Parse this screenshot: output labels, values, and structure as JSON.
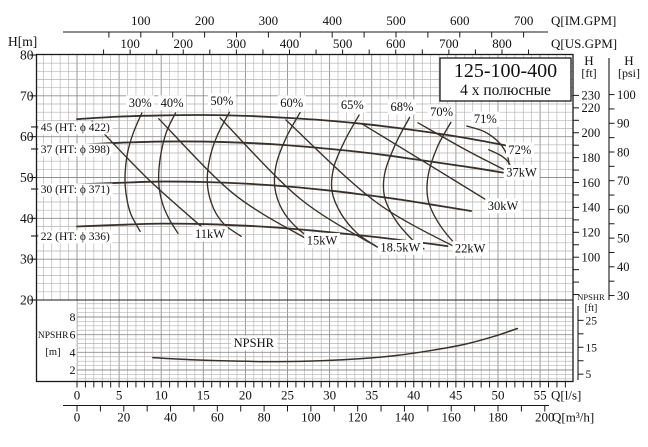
{
  "chart_data": {
    "type": "line",
    "title": "125-100-400",
    "subtitle": "4 х полюсные",
    "axes": {
      "flow_imgpm": {
        "label": "Q[IM.GPM]",
        "ticks": [
          100,
          200,
          300,
          400,
          500,
          600,
          700
        ],
        "minor_step": 50,
        "lps_per_unit": 0.07577
      },
      "flow_usgpm": {
        "label": "Q[US.GPM]",
        "ticks": [
          100,
          200,
          300,
          400,
          500,
          600,
          700,
          800
        ],
        "minor_step": 50,
        "lps_per_unit": 0.06309
      },
      "head_m": {
        "label": "H[m]",
        "ticks": [
          80,
          70,
          60,
          50,
          40,
          30,
          20
        ]
      },
      "head_ft": {
        "label": "H",
        "unit": "[ft]",
        "ticks": [
          230,
          220,
          200,
          180,
          160,
          140,
          120,
          100
        ],
        "minor_step": 10,
        "m_per_unit": 0.3048
      },
      "head_psi": {
        "label": "H",
        "unit": "[psi]",
        "ticks": [
          100,
          90,
          80,
          70,
          60,
          50,
          40,
          30
        ],
        "minor_step": 5,
        "m_per_unit": 0.7031
      },
      "flow_lps": {
        "label": "Q[l/s]",
        "ticks": [
          0,
          5,
          10,
          15,
          20,
          25,
          30,
          35,
          40,
          45,
          50,
          55
        ],
        "minor_step": 1
      },
      "flow_m3h": {
        "label": "Q[m³/h]",
        "ticks": [
          0,
          20,
          40,
          60,
          80,
          100,
          120,
          140,
          160,
          180,
          200
        ],
        "minor_step": 10,
        "lps_per_unit": 0.27778
      },
      "npshr_m": {
        "label": "NPSHR",
        "unit": "[m]",
        "ticks": [
          8,
          6,
          4,
          2
        ]
      },
      "npshr_ft": {
        "label": "NPSHR",
        "unit": "[ft]",
        "ticks": [
          25,
          15,
          5
        ],
        "minor_step": 5,
        "m_per_unit": 0.3048
      }
    },
    "head_curves": [
      {
        "name": "45 (HT: ϕ 422)",
        "label_at": [
          -4.3,
          61.4
        ],
        "points": [
          [
            0,
            64.3
          ],
          [
            5,
            64.9
          ],
          [
            10,
            65.2
          ],
          [
            15,
            65.3
          ],
          [
            20,
            65.1
          ],
          [
            25,
            64.6
          ],
          [
            30,
            63.9
          ],
          [
            35,
            62.9
          ],
          [
            40,
            61.6
          ],
          [
            44,
            60.4
          ],
          [
            48,
            59.0
          ],
          [
            52.3,
            57.3
          ]
        ]
      },
      {
        "name": "37 (HT: ϕ 398)",
        "label_at": [
          -4.3,
          56.0
        ],
        "points": [
          [
            0,
            58.0
          ],
          [
            5,
            58.5
          ],
          [
            10,
            58.8
          ],
          [
            15,
            58.8
          ],
          [
            20,
            58.5
          ],
          [
            25,
            57.9
          ],
          [
            30,
            57.0
          ],
          [
            35,
            55.9
          ],
          [
            40,
            54.5
          ],
          [
            44,
            53.3
          ],
          [
            47,
            52.4
          ],
          [
            50.6,
            51.2
          ]
        ]
      },
      {
        "name": "30 (HT: ϕ 371)",
        "label_at": [
          -4.3,
          46.2
        ],
        "points": [
          [
            0,
            48.3
          ],
          [
            5,
            48.7
          ],
          [
            10,
            49.0
          ],
          [
            15,
            48.9
          ],
          [
            20,
            48.5
          ],
          [
            25,
            47.8
          ],
          [
            30,
            46.8
          ],
          [
            34,
            45.8
          ],
          [
            38,
            44.7
          ],
          [
            42,
            43.4
          ],
          [
            46.8,
            41.8
          ]
        ]
      },
      {
        "name": "22 (HT: ϕ 336)",
        "label_at": [
          -4.3,
          34.7
        ],
        "points": [
          [
            0,
            38.0
          ],
          [
            5,
            38.4
          ],
          [
            10,
            38.7
          ],
          [
            15,
            38.6
          ],
          [
            20,
            38.2
          ],
          [
            24,
            37.7
          ],
          [
            28,
            37.0
          ],
          [
            32,
            36.2
          ],
          [
            36,
            35.3
          ],
          [
            40,
            34.3
          ],
          [
            44,
            33.2
          ]
        ]
      }
    ],
    "efficiency_curves": [
      {
        "label": "30%",
        "label_at": [
          7.5,
          67.3
        ],
        "points": [
          [
            7.7,
            65.8
          ],
          [
            6.7,
            61
          ],
          [
            6.0,
            56
          ],
          [
            5.7,
            50
          ],
          [
            5.9,
            45
          ],
          [
            6.4,
            41
          ],
          [
            7.5,
            36.8
          ]
        ]
      },
      {
        "label": "40%",
        "label_at": [
          11.3,
          67.3
        ],
        "points": [
          [
            11.7,
            65.8
          ],
          [
            10.6,
            61
          ],
          [
            9.9,
            55
          ],
          [
            9.7,
            49
          ],
          [
            10.1,
            44
          ],
          [
            10.9,
            40
          ],
          [
            12.0,
            36.3
          ]
        ]
      },
      {
        "label": "50%",
        "label_at": [
          17.2,
          67.8
        ],
        "points": [
          [
            18.1,
            66
          ],
          [
            16.6,
            60
          ],
          [
            15.7,
            54
          ],
          [
            15.5,
            48
          ],
          [
            16.2,
            42.5
          ],
          [
            17.5,
            38.5
          ],
          [
            19.5,
            35.6
          ]
        ]
      },
      {
        "label": "60%",
        "label_at": [
          25.5,
          67.3
        ],
        "points": [
          [
            26.5,
            65.9
          ],
          [
            24.9,
            60
          ],
          [
            23.7,
            53.5
          ],
          [
            23.5,
            47.5
          ],
          [
            24.4,
            42
          ],
          [
            26.2,
            37.5
          ],
          [
            28.5,
            34
          ]
        ]
      },
      {
        "label": "65%",
        "label_at": [
          32.7,
          66.8
        ],
        "points": [
          [
            33.5,
            65.3
          ],
          [
            31.8,
            59
          ],
          [
            30.5,
            52.5
          ],
          [
            30.3,
            46.5
          ],
          [
            31.4,
            41
          ],
          [
            33.3,
            36.3
          ],
          [
            35.5,
            33.2
          ]
        ]
      },
      {
        "label": "68%",
        "label_at": [
          38.6,
          66.3
        ],
        "points": [
          [
            39.5,
            64.7
          ],
          [
            37.9,
            58.5
          ],
          [
            36.6,
            51.5
          ],
          [
            36.5,
            45.5
          ],
          [
            37.7,
            40
          ],
          [
            39.7,
            35
          ],
          [
            41.2,
            32.5
          ]
        ]
      },
      {
        "label": "70%",
        "label_at": [
          43.3,
          65.1
        ],
        "points": [
          [
            44.4,
            63.5
          ],
          [
            42.8,
            57.5
          ],
          [
            41.7,
            50.5
          ],
          [
            41.7,
            44.5
          ],
          [
            42.9,
            39
          ],
          [
            44.8,
            34
          ],
          [
            46.1,
            31.9
          ]
        ]
      },
      {
        "label": "71%",
        "label_at": [
          48.5,
          63.3
        ],
        "points": [
          [
            46.3,
            62.6
          ],
          [
            48.4,
            61.2
          ],
          [
            50.1,
            58.6
          ],
          [
            51.1,
            55.4
          ],
          [
            51.4,
            51.8
          ]
        ]
      },
      {
        "label": "72%",
        "label_at": [
          52.6,
          55.8
        ],
        "points": [
          [
            48.9,
            56.8
          ],
          [
            50.4,
            55.3
          ],
          [
            51.4,
            53.2
          ],
          [
            51.5,
            50.7
          ]
        ]
      }
    ],
    "power_curves": [
      {
        "label": "11kW",
        "label_at": [
          15.8,
          35.2
        ],
        "points": [
          [
            1.8,
            63.8
          ],
          [
            8.5,
            49.5
          ],
          [
            15.2,
            37.2
          ]
        ]
      },
      {
        "label": "15kW",
        "label_at": [
          29.1,
          33.6
        ],
        "points": [
          [
            9.7,
            64.4
          ],
          [
            18.6,
            46.0
          ],
          [
            27.4,
            34.8
          ]
        ]
      },
      {
        "label": "18.5kW",
        "label_at": [
          38.4,
          31.9
        ],
        "points": [
          [
            17.0,
            64.6
          ],
          [
            26.5,
            44.8
          ],
          [
            35.8,
            32.8
          ]
        ]
      },
      {
        "label": "22kW",
        "label_at": [
          46.7,
          31.6
        ],
        "points": [
          [
            24.8,
            64.1
          ],
          [
            35.5,
            44.0
          ],
          [
            46.0,
            31.8
          ]
        ]
      },
      {
        "label": "30kW",
        "label_at": [
          50.6,
          42.1
        ],
        "points": [
          [
            33.8,
            63.2
          ],
          [
            42.3,
            52.5
          ],
          [
            50.1,
            42.6
          ]
        ]
      },
      {
        "label": "37kW",
        "label_at": [
          52.8,
          50.3
        ],
        "points": [
          [
            40.5,
            63.4
          ],
          [
            46.6,
            56.3
          ],
          [
            52.2,
            50.4
          ]
        ]
      }
    ],
    "npshr_curve": {
      "label": "NPSHR",
      "label_at": [
        21,
        4.6
      ],
      "points": [
        [
          9,
          3.4
        ],
        [
          14,
          3.15
        ],
        [
          19,
          3.0
        ],
        [
          24,
          2.95
        ],
        [
          29,
          3.05
        ],
        [
          34,
          3.3
        ],
        [
          38,
          3.65
        ],
        [
          42,
          4.2
        ],
        [
          46,
          4.9
        ],
        [
          49.5,
          5.8
        ],
        [
          52.3,
          6.7
        ]
      ]
    }
  }
}
